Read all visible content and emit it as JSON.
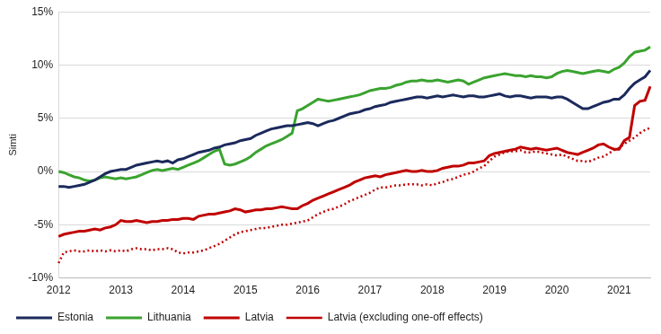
{
  "chart_data": {
    "type": "line",
    "y_label": "Simti",
    "categories": [
      "2012",
      null,
      null,
      null,
      null,
      null,
      null,
      null,
      null,
      null,
      null,
      null,
      "2013",
      null,
      null,
      null,
      null,
      null,
      null,
      null,
      null,
      null,
      null,
      null,
      "2014",
      null,
      null,
      null,
      null,
      null,
      null,
      null,
      null,
      null,
      null,
      null,
      "2015",
      null,
      null,
      null,
      null,
      null,
      null,
      null,
      null,
      null,
      null,
      null,
      "2016",
      null,
      null,
      null,
      null,
      null,
      null,
      null,
      null,
      null,
      null,
      null,
      "2017",
      null,
      null,
      null,
      null,
      null,
      null,
      null,
      null,
      null,
      null,
      null,
      "2018",
      null,
      null,
      null,
      null,
      null,
      null,
      null,
      null,
      null,
      null,
      null,
      "2019",
      null,
      null,
      null,
      null,
      null,
      null,
      null,
      null,
      null,
      null,
      null,
      "2020",
      null,
      null,
      null,
      null,
      null,
      null,
      null,
      null,
      null,
      null,
      null,
      "2021",
      null,
      null,
      null,
      null,
      null,
      null
    ],
    "series": [
      {
        "name": "Estonia",
        "color": "#1b2a5c",
        "line_style": "solid",
        "values": [
          -1.4,
          -1.4,
          -1.5,
          -1.4,
          -1.3,
          -1.2,
          -1.0,
          -0.8,
          -0.5,
          -0.2,
          0.0,
          0.1,
          0.2,
          0.2,
          0.4,
          0.6,
          0.7,
          0.8,
          0.9,
          1.0,
          0.9,
          1.0,
          0.8,
          1.1,
          1.2,
          1.4,
          1.6,
          1.8,
          1.9,
          2.0,
          2.2,
          2.3,
          2.5,
          2.6,
          2.7,
          2.9,
          3.0,
          3.1,
          3.4,
          3.6,
          3.8,
          4.0,
          4.1,
          4.2,
          4.3,
          4.3,
          4.4,
          4.5,
          4.6,
          4.5,
          4.3,
          4.5,
          4.7,
          4.8,
          5.0,
          5.2,
          5.4,
          5.5,
          5.6,
          5.8,
          5.9,
          6.1,
          6.2,
          6.3,
          6.5,
          6.6,
          6.7,
          6.8,
          6.9,
          7.0,
          7.0,
          6.9,
          7.0,
          7.1,
          7.0,
          7.1,
          7.2,
          7.1,
          7.0,
          7.1,
          7.1,
          7.0,
          7.0,
          7.1,
          7.2,
          7.3,
          7.1,
          7.0,
          7.1,
          7.1,
          7.0,
          6.9,
          7.0,
          7.0,
          7.0,
          6.9,
          7.0,
          7.0,
          6.8,
          6.5,
          6.2,
          5.9,
          5.9,
          6.1,
          6.3,
          6.5,
          6.6,
          6.8,
          6.8,
          7.2,
          7.8,
          8.3,
          8.6,
          8.9,
          9.5
        ]
      },
      {
        "name": "Lithuania",
        "color": "#3aa32f",
        "line_style": "solid",
        "values": [
          0.0,
          -0.1,
          -0.3,
          -0.5,
          -0.6,
          -0.8,
          -0.9,
          -0.8,
          -0.6,
          -0.5,
          -0.6,
          -0.7,
          -0.6,
          -0.7,
          -0.6,
          -0.5,
          -0.3,
          -0.1,
          0.1,
          0.2,
          0.1,
          0.2,
          0.3,
          0.2,
          0.4,
          0.6,
          0.8,
          1.0,
          1.3,
          1.6,
          1.9,
          2.1,
          0.7,
          0.6,
          0.7,
          0.9,
          1.1,
          1.4,
          1.8,
          2.1,
          2.4,
          2.6,
          2.8,
          3.0,
          3.3,
          3.6,
          5.7,
          5.9,
          6.2,
          6.5,
          6.8,
          6.7,
          6.6,
          6.7,
          6.8,
          6.9,
          7.0,
          7.1,
          7.2,
          7.4,
          7.6,
          7.7,
          7.8,
          7.8,
          7.9,
          8.1,
          8.2,
          8.4,
          8.5,
          8.5,
          8.6,
          8.5,
          8.5,
          8.6,
          8.5,
          8.4,
          8.5,
          8.6,
          8.5,
          8.2,
          8.4,
          8.6,
          8.8,
          8.9,
          9.0,
          9.1,
          9.2,
          9.1,
          9.0,
          9.0,
          8.9,
          9.0,
          8.9,
          8.9,
          8.8,
          8.9,
          9.2,
          9.4,
          9.5,
          9.4,
          9.3,
          9.2,
          9.3,
          9.4,
          9.5,
          9.4,
          9.3,
          9.6,
          9.8,
          10.2,
          10.8,
          11.2,
          11.3,
          11.4,
          11.7
        ]
      },
      {
        "name": "Latvia",
        "color": "#c00000",
        "line_style": "solid",
        "values": [
          -6.1,
          -5.9,
          -5.8,
          -5.7,
          -5.6,
          -5.6,
          -5.5,
          -5.4,
          -5.5,
          -5.3,
          -5.2,
          -5.0,
          -4.6,
          -4.7,
          -4.7,
          -4.6,
          -4.7,
          -4.8,
          -4.7,
          -4.7,
          -4.6,
          -4.6,
          -4.5,
          -4.5,
          -4.4,
          -4.4,
          -4.5,
          -4.2,
          -4.1,
          -4.0,
          -4.0,
          -3.9,
          -3.8,
          -3.7,
          -3.5,
          -3.6,
          -3.8,
          -3.7,
          -3.6,
          -3.6,
          -3.5,
          -3.5,
          -3.4,
          -3.3,
          -3.4,
          -3.5,
          -3.5,
          -3.2,
          -3.0,
          -2.7,
          -2.5,
          -2.3,
          -2.1,
          -1.9,
          -1.7,
          -1.5,
          -1.3,
          -1.0,
          -0.8,
          -0.6,
          -0.5,
          -0.4,
          -0.5,
          -0.3,
          -0.2,
          -0.1,
          0.0,
          0.1,
          0.0,
          0.0,
          0.1,
          0.0,
          0.0,
          0.1,
          0.3,
          0.4,
          0.5,
          0.5,
          0.6,
          0.8,
          0.8,
          0.9,
          1.0,
          1.5,
          1.7,
          1.8,
          1.9,
          2.0,
          2.1,
          2.3,
          2.2,
          2.1,
          2.2,
          2.1,
          2.0,
          2.1,
          2.2,
          2.0,
          1.8,
          1.7,
          1.6,
          1.8,
          2.0,
          2.2,
          2.5,
          2.6,
          2.3,
          2.1,
          2.1,
          2.9,
          3.2,
          6.2,
          6.6,
          6.7,
          8.0
        ]
      },
      {
        "name": "Latvia (excluding one-off effects)",
        "color": "#c00000",
        "line_style": "dotted",
        "values": [
          -8.6,
          -7.6,
          -7.5,
          -7.4,
          -7.5,
          -7.5,
          -7.4,
          -7.5,
          -7.4,
          -7.5,
          -7.4,
          -7.5,
          -7.4,
          -7.5,
          -7.3,
          -7.2,
          -7.3,
          -7.3,
          -7.4,
          -7.3,
          -7.3,
          -7.2,
          -7.3,
          -7.6,
          -7.7,
          -7.6,
          -7.6,
          -7.5,
          -7.4,
          -7.2,
          -7.0,
          -6.8,
          -6.5,
          -6.2,
          -5.9,
          -5.7,
          -5.6,
          -5.5,
          -5.4,
          -5.3,
          -5.3,
          -5.2,
          -5.1,
          -5.0,
          -5.0,
          -4.9,
          -4.8,
          -4.7,
          -4.6,
          -4.3,
          -4.0,
          -3.8,
          -3.6,
          -3.5,
          -3.3,
          -3.1,
          -2.8,
          -2.6,
          -2.4,
          -2.2,
          -2.0,
          -1.7,
          -1.5,
          -1.5,
          -1.4,
          -1.3,
          -1.3,
          -1.2,
          -1.2,
          -1.2,
          -1.3,
          -1.2,
          -1.3,
          -1.1,
          -1.0,
          -0.8,
          -0.7,
          -0.5,
          -0.3,
          -0.2,
          0.0,
          0.3,
          0.5,
          1.0,
          1.4,
          1.6,
          1.8,
          1.9,
          1.9,
          2.0,
          1.8,
          1.8,
          1.9,
          1.8,
          1.7,
          1.6,
          1.5,
          1.6,
          1.4,
          1.2,
          1.0,
          1.0,
          0.9,
          1.1,
          1.3,
          1.4,
          1.7,
          2.0,
          2.2,
          2.6,
          2.9,
          3.2,
          3.6,
          3.9,
          4.1
        ]
      }
    ],
    "ylim": [
      -10,
      15
    ],
    "yticks": [
      {
        "value": -10,
        "label": "-10%"
      },
      {
        "value": -5,
        "label": "-5%"
      },
      {
        "value": 0,
        "label": "0%"
      },
      {
        "value": 5,
        "label": "5%"
      },
      {
        "value": 10,
        "label": "10%"
      },
      {
        "value": 15,
        "label": "15%"
      }
    ],
    "grid": true,
    "legend": "bottom"
  }
}
